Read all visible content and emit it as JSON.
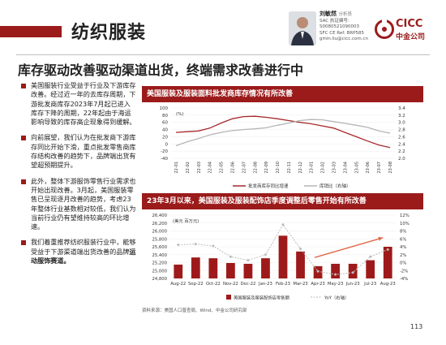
{
  "header": {
    "section_title": "纺织服装",
    "analyst_name": "刘敏然",
    "analyst_role": "分析员",
    "analyst_lines": [
      "SAC 执证编号: S0080521090003",
      "SFC CE Ref: BRP585",
      "gmin.liu@cicc.com.cn"
    ],
    "logo_text": "CICC",
    "logo_sub": "中金公司"
  },
  "headline": "库存驱动改善驱动渠道出货，终端需求改善进行中",
  "bullets": [
    {
      "text": "美国服装行业受益于行业及下游库存改善。经过近一年的去库存周期，下游批发商库存2023年7月起已进入库存下降的周期，22年起由于海运影响导致的库存高企现象得到缓解。",
      "bold": ""
    },
    {
      "text": "向前展望，我们认为在批发商下游库存同比开始下滑，重点批发零售商库存结构改善的趋势下，品牌端出货有望超预期提升。",
      "bold": ""
    },
    {
      "text": "此外，整体下游服饰零售行业需求也开始出现改善。3月起，美国服装零售已呈现逐月改善的趋势，考虑23年整体行业基数相对较低，我们认为当前行业仍有望维持较高的环比增速。",
      "bold": ""
    },
    {
      "text": "我们着重推荐纺织服装行业中，能够受益于下游渠道端出货改善的品牌",
      "bold": "运动服饰赛道。"
    }
  ],
  "footnote": "资料来源：美国人口普查局、Wind、中金公司研究部",
  "page_number": "113",
  "colors": {
    "brand_red": "#9b1b1b",
    "line_red": "#a6282b",
    "line_gray": "#b5b5b5",
    "bar_red": "#9e1a1a",
    "arrow_orange": "#e06a4a"
  },
  "chart_data": [
    {
      "type": "line",
      "title": "美国服装及服装面料批发商库存情况有所改善",
      "unit_label": "(%)",
      "x": [
        "22-01",
        "22-02",
        "22-03",
        "22-04",
        "22-05",
        "22-06",
        "22-07",
        "22-08",
        "22-09",
        "22-10",
        "22-11",
        "22-12",
        "23-01",
        "23-02",
        "23-03",
        "23-04",
        "23-05",
        "23-06",
        "23-07",
        "23-08"
      ],
      "ylim_left": [
        -40,
        100
      ],
      "yticks_left": [
        "100",
        "80",
        "60",
        "40",
        "20",
        "0",
        "-20",
        "-40"
      ],
      "ylim_right": [
        2.0,
        3.4
      ],
      "yticks_right": [
        "3.4",
        "3.2",
        "3.0",
        "2.8",
        "2.6",
        "2.4",
        "2.2",
        "2.0"
      ],
      "series": [
        {
          "name": "批发商库存同比增速",
          "axis": "left",
          "values": [
            32,
            34,
            36,
            44,
            58,
            70,
            76,
            77,
            74,
            70,
            65,
            60,
            56,
            50,
            44,
            32,
            20,
            8,
            -3,
            -10
          ]
        },
        {
          "name": "库销比（右轴）",
          "axis": "right",
          "values": [
            2.35,
            2.46,
            2.55,
            2.65,
            2.72,
            2.77,
            2.8,
            2.82,
            2.85,
            2.92,
            2.98,
            3.05,
            3.08,
            3.07,
            3.02,
            2.97,
            2.92,
            2.86,
            2.76,
            2.7
          ]
        }
      ]
    },
    {
      "type": "bar",
      "title": "23年3月以来，美国服装及服装配饰店季度调整后零售开始有所改善",
      "unit_label": "(美元 百万元)",
      "categories": [
        "Aug-22",
        "Sep-22",
        "Oct-22",
        "Nov-22",
        "Dec-22",
        "Jan-23",
        "Feb-23",
        "Mar-23",
        "Apr-23",
        "May-23",
        "Jun-23",
        "Jul-23",
        "Aug-23"
      ],
      "xtick_labels": [
        "Aug-22",
        "Sep-22",
        "Oct-22",
        "Nov-22",
        "Dec-22",
        "Jan-23",
        "Feb-23",
        "Mar-23",
        "Apr-23",
        "May-23",
        "Jun-23",
        "Jul-23",
        "Aug-23"
      ],
      "ylim_left": [
        24800,
        26400
      ],
      "yticks_left": [
        "26,400",
        "26,200",
        "26,000",
        "25,800",
        "25,600",
        "25,400",
        "25,200",
        "25,000",
        "24,800"
      ],
      "ylim_right": [
        -4,
        12
      ],
      "yticks_right": [
        "12%",
        "10%",
        "8%",
        "6%",
        "4%",
        "2%",
        "0%",
        "-2%",
        "-4%"
      ],
      "series": [
        {
          "name": "美国服装及服装配饰店零售额",
          "axis": "left",
          "values": [
            25150,
            25330,
            25310,
            25190,
            25170,
            25310,
            25880,
            25480,
            25110,
            25170,
            25170,
            25260,
            25600
          ]
        },
        {
          "name": "YoY（右轴）",
          "axis": "right",
          "values": [
            4.5,
            4.7,
            4.2,
            1.5,
            0.6,
            2.0,
            9.6,
            3.5,
            -2.2,
            -3.0,
            -2.5,
            1.5,
            3.3
          ]
        }
      ]
    }
  ]
}
